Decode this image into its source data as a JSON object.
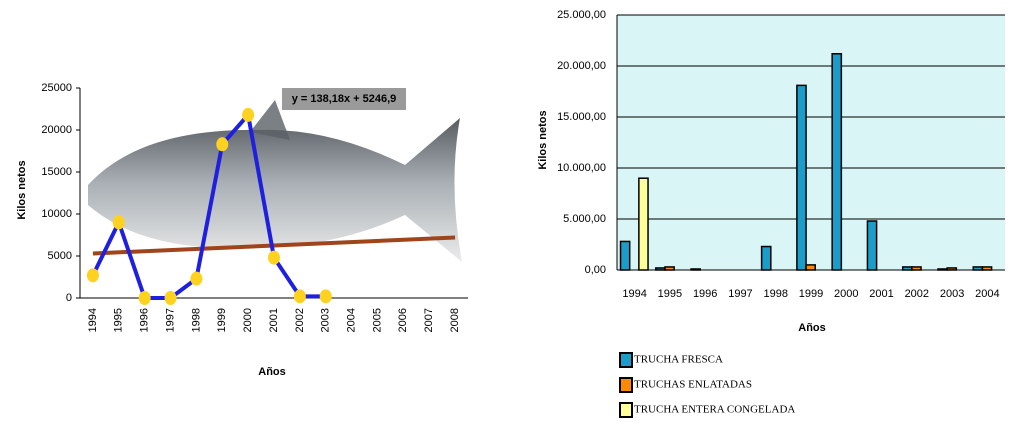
{
  "chart_data": [
    {
      "type": "line",
      "x_label": "Años",
      "y_label": "Kilos netos",
      "annotation": "y = 138,18x + 5246,9",
      "categories": [
        "1994",
        "1995",
        "1996",
        "1997",
        "1998",
        "1999",
        "2000",
        "2001",
        "2002",
        "2003",
        "2004",
        "2005",
        "2006",
        "2007",
        "2008"
      ],
      "series": [
        {
          "color": "#1f1fe0",
          "marker_color": "#ffd21f",
          "values": [
            2700,
            9000,
            0,
            0,
            2300,
            18300,
            21800,
            4800,
            200,
            200,
            null,
            null,
            null,
            null,
            null
          ]
        }
      ],
      "trendline": {
        "color": "#a0441c",
        "values": [
          5300,
          7200
        ]
      },
      "ylim": [
        0,
        25000
      ],
      "yticks": [
        0,
        5000,
        10000,
        15000,
        20000,
        25000
      ]
    },
    {
      "type": "bar",
      "x_label": "Años",
      "y_label": "Kilos netos",
      "grid": true,
      "plot_background": "#d9f5f5",
      "categories": [
        "1994",
        "1995",
        "1996",
        "1997",
        "1998",
        "1999",
        "2000",
        "2001",
        "2002",
        "2003",
        "2004"
      ],
      "series": [
        {
          "name": "TRUCHA FRESCA",
          "color": "#1c9cc8",
          "values": [
            2800,
            200,
            100,
            0,
            2300,
            18100,
            21200,
            4800,
            300,
            100,
            300
          ]
        },
        {
          "name": "TRUCHAS ENLATADAS",
          "color": "#ff8a00",
          "values": [
            0,
            300,
            0,
            0,
            0,
            500,
            0,
            0,
            300,
            200,
            300
          ]
        },
        {
          "name": "TRUCHA ENTERA CONGELADA",
          "color": "#ffff99",
          "values": [
            9000,
            0,
            0,
            0,
            0,
            0,
            0,
            0,
            0,
            0,
            0
          ]
        }
      ],
      "ylim": [
        0,
        25000
      ],
      "yticks": [
        {
          "value": 0,
          "label": "0,00"
        },
        {
          "value": 5000,
          "label": "5.000,00"
        },
        {
          "value": 10000,
          "label": "10.000,00"
        },
        {
          "value": 15000,
          "label": "15.000,00"
        },
        {
          "value": 20000,
          "label": "20.000,00"
        },
        {
          "value": 25000,
          "label": "25.000,00"
        }
      ]
    }
  ]
}
